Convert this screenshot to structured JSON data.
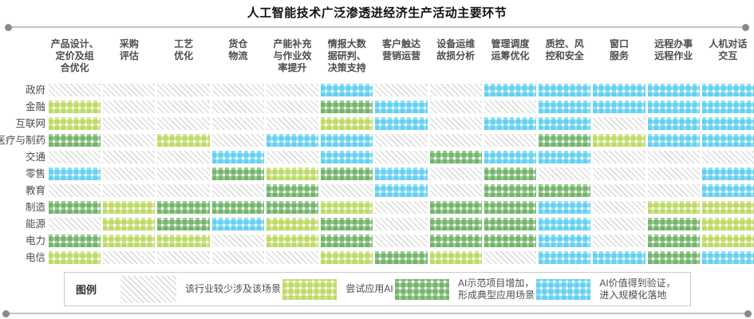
{
  "title": "人工智能技术广泛渗透进经济生产活动主要环节",
  "legend": {
    "title": "图例",
    "items": [
      {
        "level": "G",
        "label": "该行业较少涉及该场景"
      },
      {
        "level": "L",
        "label": "尝试应用AI"
      },
      {
        "level": "D",
        "label": "AI示范项目增加，\n形成典型应用场景"
      },
      {
        "level": "B",
        "label": "AI价值得到验证，\n进入规模化落地"
      }
    ]
  },
  "chart_data": {
    "type": "heatmap",
    "title": "人工智能技术广泛渗透进经济生产活动主要环节",
    "columns": [
      "产品设计、\n定价及组\n合优化",
      "采购\n评估",
      "工艺\n优化",
      "货仓\n物流",
      "产能补充\n与作业效\n率提升",
      "情报大数\n据研判、\n决策支持",
      "客户触达\n营销运营",
      "设备运维\n故损分析",
      "管理调度\n运筹优化",
      "质控、风\n控和安全",
      "窗口\n服务",
      "远程办事\n远程作业",
      "人机对话\n交互"
    ],
    "rows": [
      "政府",
      "金融",
      "互联网",
      "医疗与制药",
      "交通",
      "零售",
      "教育",
      "制造",
      "能源",
      "电力",
      "电信"
    ],
    "levels": {
      "G": {
        "name": "rarely-involved",
        "label": "该行业较少涉及该场景",
        "color": "#dcdcdc"
      },
      "L": {
        "name": "trying-ai",
        "label": "尝试应用AI",
        "color": "#add03c"
      },
      "D": {
        "name": "demo-projects-growing",
        "label": "AI示范项目增加，形成典型应用场景",
        "color": "#58a64e"
      },
      "B": {
        "name": "value-proven-scaling",
        "label": "AI价值得到验证，进入规模化落地",
        "color": "#45c7f0"
      }
    },
    "matrix": [
      "GGGGGBGGBBBBB",
      "LGGGGDBGGBBBB",
      "LGGGGLBGBBGBB",
      "DGLGBBGGGDLBB",
      "GGGBGBGDBBGGG",
      "BGGDLDBGDGGGB",
      "GGGGDGBGDDGGB",
      "DLDDDLGDDBGLL",
      "GLDBLDGDDBGDL",
      "DLLGLDGDDBGDL",
      "LGGGGLDLGBBDB"
    ]
  }
}
